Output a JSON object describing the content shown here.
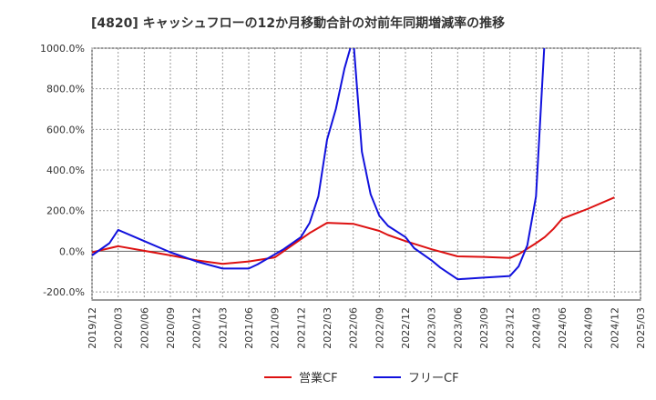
{
  "chart_data": {
    "type": "line",
    "title": "[4820]  キャッシュフローの12か月移動合計の対前年同期増減率の推移",
    "xlabel": "",
    "ylabel": "",
    "ylim": [
      -240,
      1000
    ],
    "yticks": [
      -200,
      0,
      200,
      400,
      600,
      800,
      1000
    ],
    "ytick_labels": [
      "-200.0%",
      "0.0%",
      "200.0%",
      "400.0%",
      "600.0%",
      "800.0%",
      "1000.0%"
    ],
    "xticks": [
      "2019/12",
      "2020/03",
      "2020/06",
      "2020/09",
      "2020/12",
      "2021/03",
      "2021/06",
      "2021/09",
      "2021/12",
      "2022/03",
      "2022/06",
      "2022/09",
      "2022/12",
      "2023/03",
      "2023/06",
      "2023/09",
      "2023/12",
      "2024/03",
      "2024/06",
      "2024/09",
      "2024/12",
      "2025/03"
    ],
    "grid": true,
    "legend_position": "bottom-center",
    "series": [
      {
        "name": "営業CF",
        "color": "#dd1111",
        "points": [
          [
            "2019/12",
            -5
          ],
          [
            "2020/03",
            25
          ],
          [
            "2020/06",
            2
          ],
          [
            "2020/09",
            -20
          ],
          [
            "2020/12",
            -45
          ],
          [
            "2021/03",
            -62
          ],
          [
            "2021/06",
            -50
          ],
          [
            "2021/09",
            -30
          ],
          [
            "2021/12",
            60
          ],
          [
            "2022/01",
            90
          ],
          [
            "2022/03",
            140
          ],
          [
            "2022/06",
            135
          ],
          [
            "2022/09",
            100
          ],
          [
            "2022/10",
            80
          ],
          [
            "2022/12",
            50
          ],
          [
            "2023/03",
            10
          ],
          [
            "2023/06",
            -25
          ],
          [
            "2023/09",
            -28
          ],
          [
            "2023/12",
            -33
          ],
          [
            "2024/01",
            -15
          ],
          [
            "2024/03",
            40
          ],
          [
            "2024/04",
            70
          ],
          [
            "2024/05",
            110
          ],
          [
            "2024/06",
            160
          ],
          [
            "2024/09",
            210
          ],
          [
            "2024/12",
            265
          ]
        ]
      },
      {
        "name": "フリーCF",
        "color": "#1111dd",
        "points": [
          [
            "2019/12",
            -20
          ],
          [
            "2020/02",
            40
          ],
          [
            "2020/03",
            105
          ],
          [
            "2020/06",
            50
          ],
          [
            "2020/09",
            -5
          ],
          [
            "2020/12",
            -50
          ],
          [
            "2021/03",
            -85
          ],
          [
            "2021/06",
            -85
          ],
          [
            "2021/07",
            -65
          ],
          [
            "2021/09",
            -15
          ],
          [
            "2021/10",
            10
          ],
          [
            "2021/12",
            70
          ],
          [
            "2022/01",
            140
          ],
          [
            "2022/02",
            270
          ],
          [
            "2022/03",
            550
          ],
          [
            "2022/04",
            700
          ],
          [
            "2022/05",
            900
          ],
          [
            "2022/06",
            1050
          ],
          [
            "2022/07",
            490
          ],
          [
            "2022/08",
            280
          ],
          [
            "2022/09",
            175
          ],
          [
            "2022/10",
            125
          ],
          [
            "2022/12",
            70
          ],
          [
            "2023/01",
            15
          ],
          [
            "2023/03",
            -45
          ],
          [
            "2023/04",
            -80
          ],
          [
            "2023/06",
            -138
          ],
          [
            "2023/09",
            -130
          ],
          [
            "2023/12",
            -122
          ],
          [
            "2024/01",
            -75
          ],
          [
            "2024/02",
            30
          ],
          [
            "2024/03",
            270
          ],
          [
            "2024/04",
            1050
          ]
        ]
      }
    ]
  }
}
